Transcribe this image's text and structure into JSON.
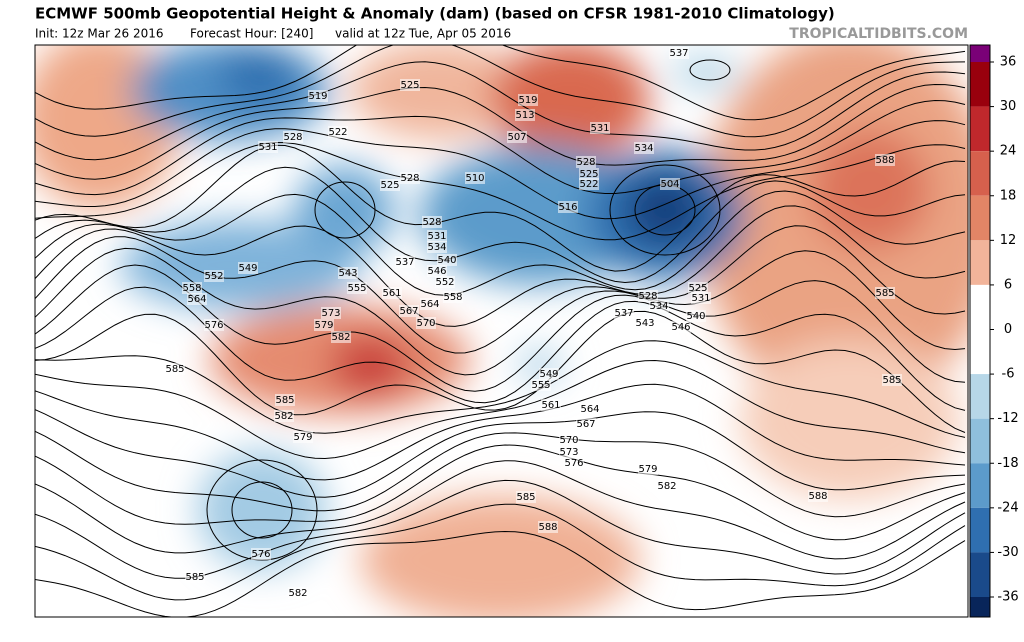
{
  "header": {
    "title": "ECMWF 500mb Geopotential Height & Anomaly (dam) (based on CFSR 1981-2010 Climatology)",
    "init": "Init: 12z Mar 26 2016",
    "forecast_hour": "Forecast Hour: [240]",
    "valid": "valid at 12z Tue, Apr 05 2016",
    "watermark": "TROPICALTIDBITS.COM"
  },
  "map": {
    "contour_labels": [
      "519",
      "525",
      "522",
      "528",
      "531",
      "525",
      "528",
      "528",
      "531",
      "534",
      "537",
      "540",
      "543",
      "546",
      "549",
      "552",
      "558",
      "564",
      "555",
      "561",
      "552",
      "558",
      "564",
      "567",
      "570",
      "573",
      "576",
      "579",
      "582",
      "585",
      "585",
      "582",
      "579",
      "576",
      "585",
      "582",
      "519",
      "513",
      "507",
      "510",
      "516",
      "522",
      "525",
      "528",
      "531",
      "534",
      "537",
      "504",
      "525",
      "528",
      "531",
      "534",
      "537",
      "540",
      "543",
      "546",
      "549",
      "555",
      "561",
      "564",
      "567",
      "570",
      "573",
      "576",
      "579",
      "582",
      "585",
      "588",
      "588",
      "588",
      "585",
      "585"
    ]
  },
  "colorbar": {
    "ticks": [
      36,
      30,
      24,
      18,
      12,
      6,
      0,
      -6,
      -12,
      -18,
      -24,
      -30,
      -36
    ],
    "colors": [
      "#7a0177",
      "#99000d",
      "#c0282c",
      "#d6604d",
      "#e38566",
      "#f2b49a",
      "#ffffff",
      "#ffffff",
      "#b7d7e8",
      "#8fbfdd",
      "#5c9bcb",
      "#2f6fb0",
      "#1a4a8a",
      "#08255a"
    ]
  }
}
